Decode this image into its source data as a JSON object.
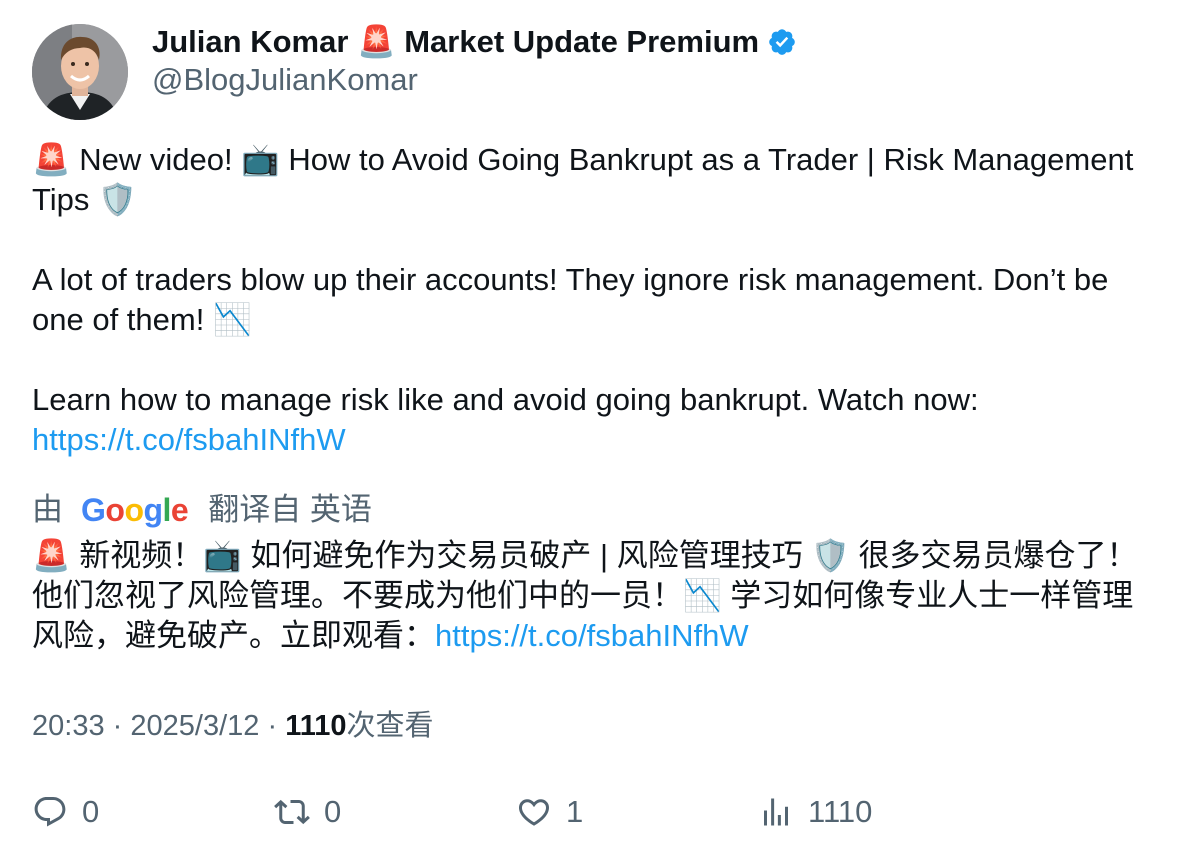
{
  "author": {
    "display_name": "Julian Komar 🚨 Market Update Premium",
    "handle": "@BlogJulianKomar",
    "verified_color": "#1d9bf0"
  },
  "tweet": {
    "line1": "🚨 New video! 📺 How to Avoid Going Bankrupt as a Trader | Risk Management Tips 🛡️",
    "line2": "A lot of traders blow up their accounts! They ignore risk management. Don’t be one of them! 📉",
    "line3": "Learn how to manage risk like and avoid going bankrupt. Watch now:",
    "link": "https://t.co/fsbahINfhW"
  },
  "translation": {
    "prefix": "由",
    "provider": "Google",
    "suffix": "翻译自 英语",
    "text": "🚨 新视频！📺 如何避免作为交易员破产 | 风险管理技巧 🛡️ 很多交易员爆仓了！他们忽视了风险管理。不要成为他们中的一员！📉 学习如何像专业人士一样管理风险，避免破产。立即观看：",
    "link": "https://t.co/fsbahINfhW"
  },
  "meta": {
    "time": "20:33",
    "separator": "·",
    "date": "2025/3/12",
    "views_count": "1110",
    "views_label": "次查看"
  },
  "actions": {
    "reply_count": "0",
    "retweet_count": "0",
    "like_count": "1",
    "views_count": "1110"
  },
  "colors": {
    "link": "#1d9bf0",
    "secondary_text": "#536471",
    "primary_text": "#0f1419"
  }
}
